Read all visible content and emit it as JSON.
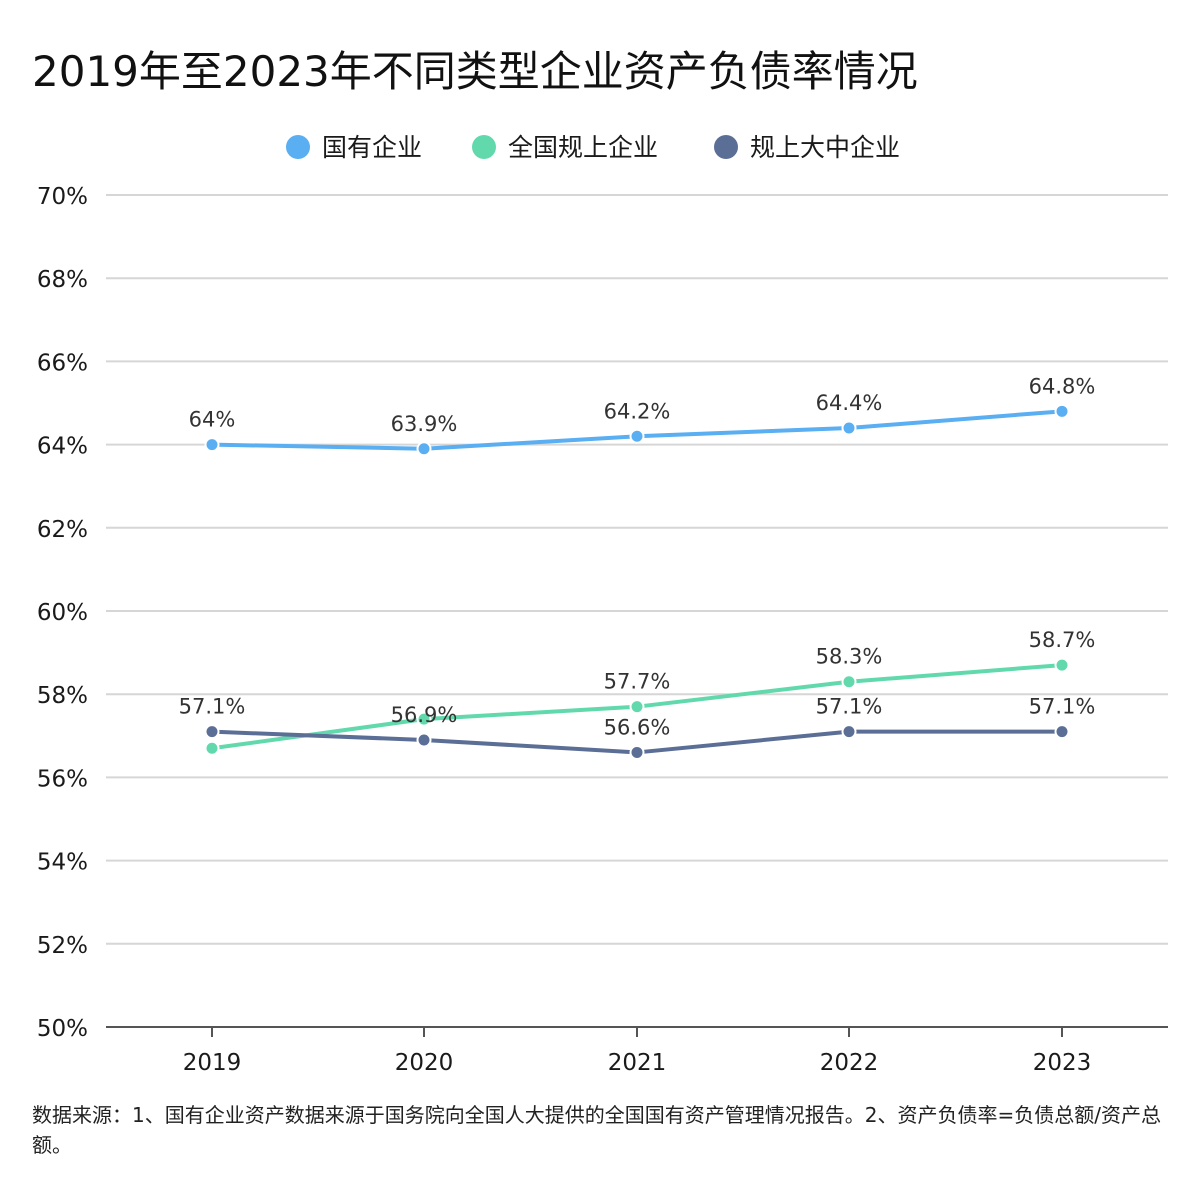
{
  "chart_data": {
    "type": "line",
    "title": "2019年至2023年不同类型企业资产负债率情况",
    "xlabel": "",
    "ylabel": "",
    "categories": [
      "2019",
      "2020",
      "2021",
      "2022",
      "2023"
    ],
    "ylim": [
      50,
      70
    ],
    "yticks": [
      50,
      52,
      54,
      56,
      58,
      60,
      62,
      64,
      66,
      68,
      70
    ],
    "y_tick_suffix": "%",
    "grid": true,
    "legend_position": "top-center",
    "series": [
      {
        "name": "国有企业",
        "color": "#5aaef2",
        "values": [
          64,
          63.9,
          64.2,
          64.4,
          64.8
        ],
        "labels": [
          "64%",
          "63.9%",
          "64.2%",
          "64.4%",
          "64.8%"
        ]
      },
      {
        "name": "全国规上企业",
        "color": "#62d9ad",
        "values": [
          56.7,
          57.4,
          57.7,
          58.3,
          58.7
        ],
        "labels": [
          "",
          "",
          "57.7%",
          "58.3%",
          "58.7%"
        ]
      },
      {
        "name": "规上大中企业",
        "color": "#5b6e96",
        "values": [
          57.1,
          56.9,
          56.6,
          57.1,
          57.1
        ],
        "labels": [
          "57.1%",
          "56.9%",
          "56.6%",
          "57.1%",
          "57.1%"
        ]
      }
    ]
  },
  "source_note": "数据来源：1、国有企业资产数据来源于国务院向全国人大提供的全国国有资产管理情况报告。2、资产负债率=负债总额/资产总额。"
}
